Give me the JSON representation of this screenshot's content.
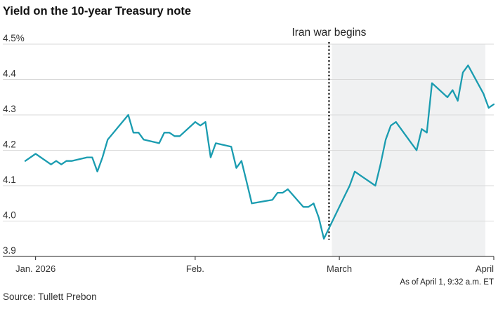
{
  "title": "Yield on the 10-year Treasury note",
  "note": "As of April 1, 9:32 a.m. ET",
  "source": "Source: Tullett Prebon",
  "colors": {
    "line": "#1a9cb0",
    "shade": "#f0f1f2",
    "grid": "#d9d9d9",
    "marker": "#222222"
  },
  "chart_data": {
    "type": "line",
    "title": "Yield on the 10-year Treasury note",
    "xlabel": "",
    "ylabel": "",
    "ylim": [
      3.9,
      4.5
    ],
    "y_ticks": [
      "4.5%",
      "4.4",
      "4.3",
      "4.2",
      "4.1",
      "4.0",
      "3.9"
    ],
    "y_tick_values": [
      4.5,
      4.4,
      4.3,
      4.2,
      4.1,
      4.0,
      3.9
    ],
    "x_ticks": [
      "Jan. 2026",
      "Feb.",
      "March",
      "April"
    ],
    "x_tick_dates": [
      "2026-01-02",
      "2026-02-02",
      "2026-03-02",
      "2026-04-01"
    ],
    "grid": "horizontal",
    "annotation": {
      "label": "Iran war begins",
      "date": "2026-02-28",
      "shaded_after": true
    },
    "series": [
      {
        "x": [
          "2025-12-31",
          "2026-01-02",
          "2026-01-05",
          "2026-01-06",
          "2026-01-07",
          "2026-01-08",
          "2026-01-09",
          "2026-01-12",
          "2026-01-13",
          "2026-01-14",
          "2026-01-15",
          "2026-01-16",
          "2026-01-20",
          "2026-01-21",
          "2026-01-22",
          "2026-01-23",
          "2026-01-26",
          "2026-01-27",
          "2026-01-28",
          "2026-01-29",
          "2026-01-30",
          "2026-02-02",
          "2026-02-03",
          "2026-02-04",
          "2026-02-05",
          "2026-02-06",
          "2026-02-09",
          "2026-02-10",
          "2026-02-11",
          "2026-02-12",
          "2026-02-13",
          "2026-02-17",
          "2026-02-18",
          "2026-02-19",
          "2026-02-20",
          "2026-02-23",
          "2026-02-24",
          "2026-02-25",
          "2026-02-26",
          "2026-02-27",
          "2026-03-02",
          "2026-03-03",
          "2026-03-04",
          "2026-03-05",
          "2026-03-06",
          "2026-03-09",
          "2026-03-10",
          "2026-03-11",
          "2026-03-12",
          "2026-03-13",
          "2026-03-16",
          "2026-03-17",
          "2026-03-18",
          "2026-03-19",
          "2026-03-20",
          "2026-03-23",
          "2026-03-24",
          "2026-03-25",
          "2026-03-26",
          "2026-03-27",
          "2026-03-30",
          "2026-03-31",
          "2026-04-01"
        ],
        "values": [
          4.17,
          4.19,
          4.16,
          4.17,
          4.16,
          4.17,
          4.17,
          4.18,
          4.18,
          4.14,
          4.18,
          4.23,
          4.3,
          4.25,
          4.25,
          4.23,
          4.22,
          4.25,
          4.25,
          4.24,
          4.24,
          4.28,
          4.27,
          4.28,
          4.18,
          4.22,
          4.21,
          4.15,
          4.17,
          4.11,
          4.05,
          4.06,
          4.08,
          4.08,
          4.09,
          4.04,
          4.04,
          4.05,
          4.01,
          3.95,
          4.04,
          4.07,
          4.1,
          4.14,
          4.13,
          4.1,
          4.16,
          4.23,
          4.27,
          4.28,
          4.22,
          4.2,
          4.26,
          4.25,
          4.39,
          4.35,
          4.37,
          4.34,
          4.42,
          4.44,
          4.36,
          4.32,
          4.33
        ]
      }
    ]
  }
}
